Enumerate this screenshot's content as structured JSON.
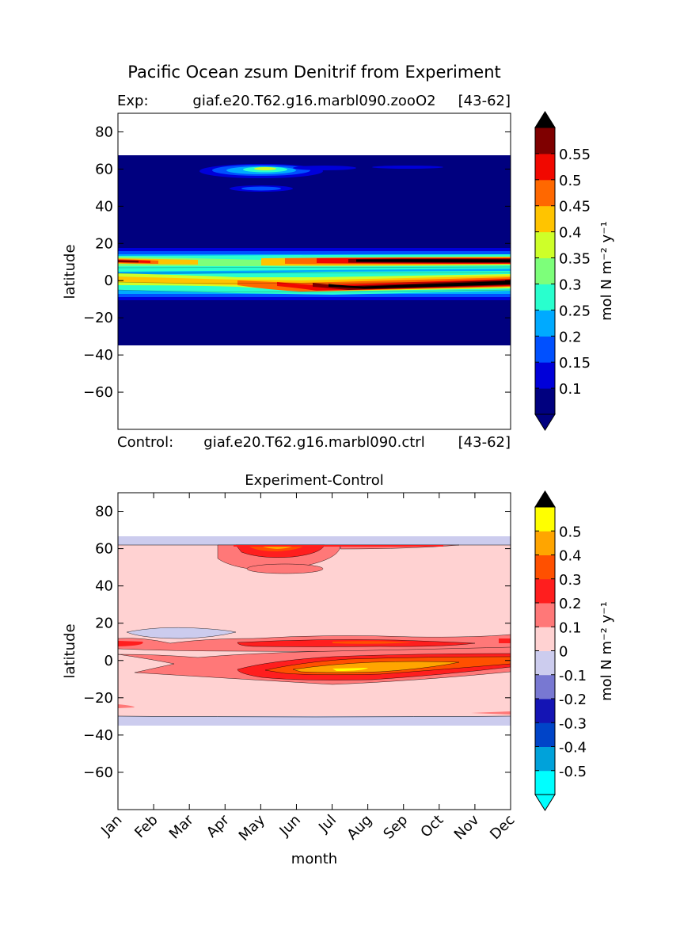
{
  "title": "Pacific Ocean zsum Denitrif from Experiment",
  "exp_label": "Exp:",
  "exp_name": "giaf.e20.T62.g16.marbl090.zooO2",
  "exp_years": "[43-62]",
  "ctrl_label": "Control:",
  "ctrl_name": "giaf.e20.T62.g16.marbl090.ctrl",
  "ctrl_years": "[43-62]",
  "chart_data": [
    {
      "type": "heatmap",
      "title": "",
      "xlabel": "",
      "ylabel": "latitude",
      "xlim": [
        0,
        11
      ],
      "ylim": [
        -80,
        90
      ],
      "yticks": [
        80,
        60,
        40,
        20,
        0,
        -20,
        -40,
        -60
      ],
      "colorbar": {
        "label": "mol N m⁻² y⁻¹",
        "ticks": [
          "0.1",
          "0.15",
          "0.2",
          "0.25",
          "0.3",
          "0.35",
          "0.4",
          "0.45",
          "0.5",
          "0.55"
        ],
        "colors": [
          "#00007f",
          "#0000d9",
          "#0050ff",
          "#00aaff",
          "#29ffce",
          "#7dff7a",
          "#ceff29",
          "#ffc400",
          "#ff6800",
          "#f10800",
          "#7f0000"
        ],
        "under_color": "#00007f",
        "over_color": "#000000"
      },
      "fill_lat_range": [
        -34,
        67
      ],
      "background_value": "0.05",
      "features": [
        {
          "name": "north-patch",
          "lat": 58,
          "month_start": 3.5,
          "month_end": 6.5,
          "peak": "0.3"
        },
        {
          "name": "north-wisp",
          "lat": 49,
          "month_start": 4.0,
          "month_end": 5.5,
          "peak": "0.15"
        },
        {
          "name": "band-10N",
          "lat": 11,
          "month_start": 0,
          "month_end": 11,
          "peak": ">0.55"
        },
        {
          "name": "band-equator",
          "lat": 1,
          "month_start": 0,
          "month_end": 11,
          "peak": ">0.55"
        }
      ]
    },
    {
      "type": "heatmap",
      "title": "Experiment-Control",
      "xlabel": "month",
      "ylabel": "latitude",
      "xlim": [
        0,
        11
      ],
      "ylim": [
        -80,
        90
      ],
      "categories": [
        "Jan",
        "Feb",
        "Mar",
        "Apr",
        "May",
        "Jun",
        "Jul",
        "Aug",
        "Sep",
        "Oct",
        "Nov",
        "Dec"
      ],
      "yticks": [
        80,
        60,
        40,
        20,
        0,
        -20,
        -40,
        -60
      ],
      "colorbar": {
        "label": "mol N m⁻² y⁻¹",
        "ticks": [
          "-0.5",
          "-0.4",
          "-0.3",
          "-0.2",
          "-0.1",
          "0",
          "0.1",
          "0.2",
          "0.3",
          "0.4",
          "0.5"
        ],
        "colors": [
          "#00ffff",
          "#00a2da",
          "#0044c8",
          "#1414b4",
          "#7878d2",
          "#ccccee",
          "#ffd2d2",
          "#ff7878",
          "#ff1e1e",
          "#ff5000",
          "#ffa500",
          "#ffff00"
        ],
        "under_color": "#00ffff",
        "over_color": "#000000"
      },
      "fill_lat_range": [
        -33,
        66
      ],
      "background_value": "0 to 0.1",
      "features": [
        {
          "name": "north-patch",
          "lat": 58,
          "month_start": 3.0,
          "month_end": 7.0,
          "peak": "0.3"
        },
        {
          "name": "negative-blob",
          "lat": 15,
          "month_start": 0.2,
          "month_end": 3.3,
          "peak": "-0.1"
        },
        {
          "name": "band-10N",
          "lat": 10,
          "month_start": 0,
          "month_end": 11,
          "peak": "0.3"
        },
        {
          "name": "band-equator",
          "lat": -3,
          "month_start": 3.5,
          "month_end": 11,
          "peak": "0.5"
        }
      ]
    }
  ]
}
